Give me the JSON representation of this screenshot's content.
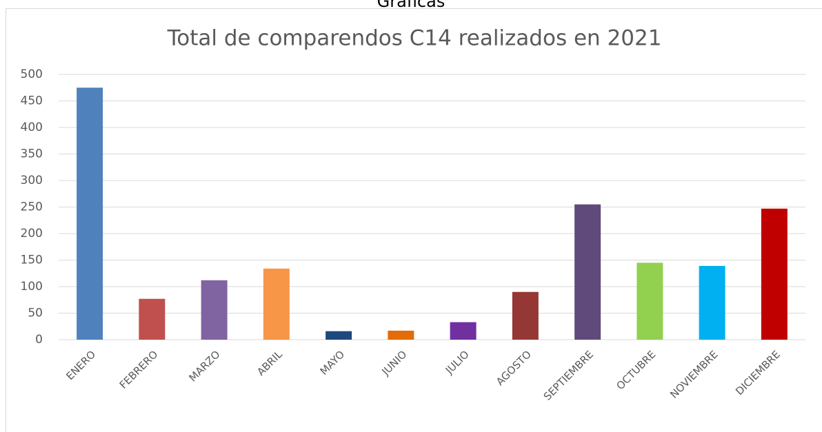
{
  "page_title": "Gráficas",
  "chart_data": {
    "type": "bar",
    "title": "Total de comparendos C14 realizados en 2021",
    "categories": [
      "ENERO",
      "FEBRERO",
      "MARZO",
      "ABRIL",
      "MAYO",
      "JUNIO",
      "JULIO",
      "AGOSTO",
      "SEPTIEMBRE",
      "OCTUBRE",
      "NOVIEMBRE",
      "DICIEMBRE"
    ],
    "values": [
      475,
      77,
      112,
      134,
      16,
      17,
      33,
      90,
      255,
      145,
      139,
      247
    ],
    "colors": [
      "#4f81bd",
      "#c0504d",
      "#8064a2",
      "#f79646",
      "#1f497d",
      "#e36c09",
      "#7030a0",
      "#953735",
      "#604a7b",
      "#92d050",
      "#00b0f0",
      "#c00000"
    ],
    "ylim": [
      0,
      500
    ],
    "yticks": [
      0,
      50,
      100,
      150,
      200,
      250,
      300,
      350,
      400,
      450,
      500
    ],
    "grid": true
  }
}
